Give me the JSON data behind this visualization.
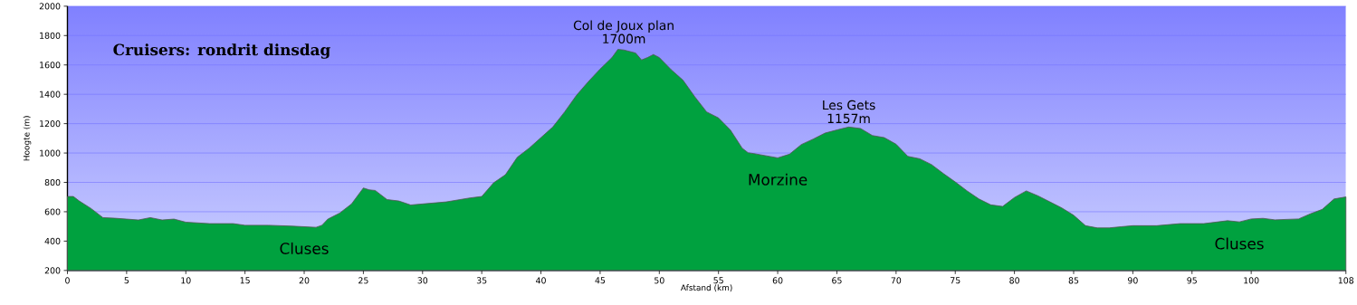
{
  "chart_data": {
    "type": "area",
    "title": "Cruisers: rondrit dinsdag",
    "xlabel": "Afstand  (km)",
    "ylabel": "Hoogte (m)",
    "x": [
      0,
      0.5,
      1,
      2,
      3,
      4,
      5,
      6,
      7,
      8,
      9,
      10,
      12,
      14,
      15,
      17,
      19,
      20,
      21,
      21.5,
      22,
      23,
      24,
      25,
      25.5,
      26,
      27,
      28,
      29,
      30,
      32,
      34,
      35,
      36,
      37,
      38,
      39,
      40,
      41,
      42,
      43,
      44,
      45,
      46,
      46.5,
      47,
      48,
      48.5,
      49,
      49.5,
      50,
      51,
      52,
      53,
      54,
      55,
      56,
      57,
      57.5,
      58,
      60,
      61,
      62,
      63,
      64,
      65,
      66,
      67,
      68,
      69,
      70,
      71,
      72,
      73,
      74,
      75,
      76,
      77,
      78,
      79,
      80,
      81,
      82,
      83,
      84,
      85,
      86,
      87,
      88,
      89,
      90,
      92,
      94,
      96,
      98,
      99,
      100,
      101,
      102,
      104,
      105,
      106,
      107,
      108
    ],
    "series": [
      {
        "color": "#00a13f",
        "values": [
          704,
          704,
          673,
          622,
          560,
          556,
          550,
          544,
          560,
          544,
          550,
          529,
          519,
          519,
          508,
          508,
          502,
          498,
          494,
          508,
          550,
          591,
          653,
          762,
          749,
          745,
          683,
          673,
          646,
          653,
          667,
          694,
          704,
          797,
          852,
          971,
          1033,
          1105,
          1177,
          1280,
          1393,
          1486,
          1572,
          1650,
          1706,
          1702,
          1681,
          1634,
          1650,
          1671,
          1650,
          1568,
          1496,
          1383,
          1280,
          1239,
          1157,
          1033,
          1002,
          996,
          967,
          992,
          1058,
          1095,
          1136,
          1157,
          1177,
          1167,
          1119,
          1105,
          1060,
          977,
          961,
          921,
          860,
          803,
          742,
          687,
          647,
          636,
          697,
          742,
          708,
          667,
          626,
          576,
          505,
          490,
          490,
          498,
          505,
          505,
          519,
          519,
          539,
          531,
          551,
          555,
          545,
          551,
          586,
          616,
          687,
          701
        ]
      }
    ],
    "xlim": [
      0,
      108
    ],
    "ylim": [
      200,
      2000
    ],
    "xticks": [
      0,
      5,
      10,
      15,
      20,
      25,
      30,
      35,
      40,
      45,
      50,
      55,
      60,
      65,
      70,
      75,
      80,
      85,
      90,
      95,
      100,
      108
    ],
    "yticks": [
      200,
      400,
      600,
      800,
      1000,
      1200,
      1400,
      1600,
      1800,
      2000
    ],
    "grid": "y",
    "annotations": [
      {
        "text": "Col de Joux plan",
        "x": 47,
        "y": 1700
      },
      {
        "text": "1700m",
        "x": 47,
        "y": 1700
      },
      {
        "text": "Les Gets",
        "x": 66,
        "y": 1157
      },
      {
        "text": "1157m",
        "x": 66,
        "y": 1157
      },
      {
        "text": "Morzine",
        "x": 60,
        "y": 967
      },
      {
        "text": "Cluses",
        "x": 20,
        "y": 498
      },
      {
        "text": "Cluses",
        "x": 99,
        "y": 531
      }
    ]
  }
}
